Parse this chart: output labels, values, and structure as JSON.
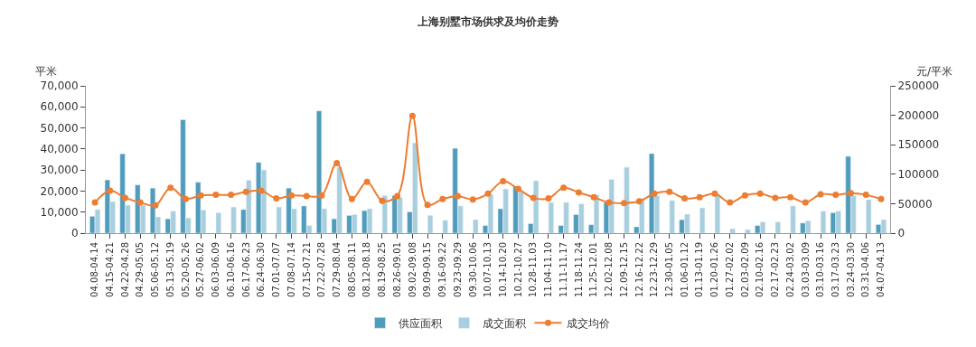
{
  "chart_data": {
    "type": "bar",
    "title": "上海别墅市场供求及均价走势",
    "ylabel": "平米",
    "y2label": "元/平米",
    "categories": [
      "04.08-04.14",
      "04.15-04.21",
      "04.22-04.28",
      "04.29-05.05",
      "05.06-05.12",
      "05.13-05.19",
      "05.20-05.26",
      "05.27-06.02",
      "06.03-06.09",
      "06.10-06.16",
      "06.17-06.23",
      "06.24-06.30",
      "07.01-07.07",
      "07.08-07.14",
      "07.15-07.21",
      "07.22-07.28",
      "07.29-08.04",
      "08.05-08.11",
      "08.12-08.18",
      "08.19-08.25",
      "08.26-09.01",
      "09.02-09.08",
      "09.09-09.15",
      "09.16-09.22",
      "09.23-09.29",
      "09.30-10.06",
      "10.07-10.13",
      "10.14-10.20",
      "10.21-10.27",
      "10.28-11.03",
      "11.04-11.10",
      "11.11-11.17",
      "11.18-11.24",
      "11.25-12.01",
      "12.02-12.08",
      "12.09-12.15",
      "12.16-12.22",
      "12.23-12.29",
      "12.30-01.05",
      "01.06-01.12",
      "01.13-01.19",
      "01.20-01.26",
      "01.27-02.02",
      "02.03-02.09",
      "02.10-02.16",
      "02.17-02.23",
      "02.24-03.02",
      "03.03-03.09",
      "03.10-03.16",
      "03.17-03.23",
      "03.24-03.30",
      "03.31-04.06",
      "04.07-04.13"
    ],
    "series": [
      {
        "name": "供应面积",
        "color": "#4f9cbc",
        "values": [
          8000,
          25300,
          37700,
          22900,
          21400,
          6800,
          53900,
          24200,
          null,
          null,
          11200,
          33600,
          null,
          21400,
          12900,
          58100,
          6800,
          8400,
          10700,
          null,
          17900,
          10100,
          null,
          null,
          40300,
          null,
          3600,
          11600,
          22300,
          4500,
          null,
          3600,
          8800,
          4000,
          14600,
          null,
          3000,
          37800,
          null,
          6400,
          null,
          null,
          null,
          null,
          3600,
          null,
          null,
          4800,
          null,
          9700,
          36500,
          null,
          4100
        ]
      },
      {
        "name": "成交面积",
        "color": "#a8cfdd",
        "values": [
          11200,
          15000,
          13300,
          13300,
          7700,
          10400,
          7200,
          11000,
          9700,
          12400,
          25100,
          30000,
          12400,
          11600,
          3600,
          11600,
          31300,
          8800,
          11600,
          17800,
          17000,
          42900,
          8400,
          6100,
          12900,
          6400,
          18400,
          21000,
          19700,
          24900,
          14600,
          14600,
          13900,
          18200,
          25500,
          31300,
          16500,
          17800,
          15500,
          9000,
          12000,
          18400,
          2100,
          1700,
          5300,
          5300,
          12900,
          5900,
          10400,
          10400,
          17800,
          15900,
          6400
        ]
      },
      {
        "name": "成交均价",
        "color": "#ed7d31",
        "type": "line",
        "axis": "y2",
        "marker": "circle",
        "values": [
          52000,
          72000,
          60000,
          52000,
          47000,
          77000,
          58000,
          64000,
          65000,
          65000,
          70000,
          72000,
          59000,
          64000,
          63000,
          64000,
          119000,
          58000,
          87000,
          55000,
          63000,
          199000,
          48000,
          58000,
          63000,
          57000,
          67000,
          88000,
          75000,
          60000,
          59000,
          77000,
          69000,
          61000,
          52000,
          51000,
          54000,
          67000,
          70000,
          59000,
          61000,
          67000,
          52000,
          64000,
          67000,
          60000,
          61000,
          52000,
          66000,
          65000,
          68000,
          65000,
          58000
        ]
      }
    ],
    "ylim": [
      0,
      70000
    ],
    "yticks": [
      {
        "value": 0,
        "label": "0"
      },
      {
        "value": 10000,
        "label": "10,000"
      },
      {
        "value": 20000,
        "label": "20,000"
      },
      {
        "value": 30000,
        "label": "30,000"
      },
      {
        "value": 40000,
        "label": "40,000"
      },
      {
        "value": 50000,
        "label": "50,000"
      },
      {
        "value": 60000,
        "label": "60,000"
      },
      {
        "value": 70000,
        "label": "70,000"
      }
    ],
    "y2lim": [
      0,
      250000
    ],
    "y2ticks": [
      0,
      50000,
      100000,
      150000,
      200000,
      250000
    ],
    "legend": "bottom"
  }
}
